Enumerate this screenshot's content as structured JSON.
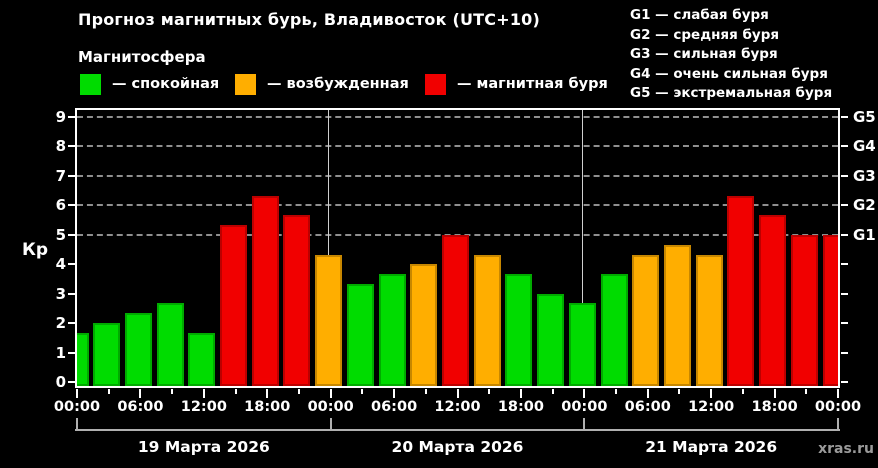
{
  "header": {
    "title": "Прогноз магнитных бурь, Владивосток (UTC+10)",
    "subtitle": "Магнитосфера"
  },
  "legend": {
    "items": [
      {
        "label": "— спокойная",
        "level": "quiet",
        "color": "#00dc00"
      },
      {
        "label": "— возбужденная",
        "level": "excited",
        "color": "#ffae00"
      },
      {
        "label": "— магнитная буря",
        "level": "storm",
        "color": "#f10000"
      }
    ]
  },
  "storm_scale_legend": {
    "items": [
      "G1 — слабая буря",
      "G2 — средняя буря",
      "G3 — сильная буря",
      "G4 — очень сильная буря",
      "G5 — экстремальная буря"
    ]
  },
  "chart_data": {
    "type": "bar",
    "title": "Прогноз магнитных бурь, Владивосток (UTC+10)",
    "ylabel": "Кр",
    "ylim": [
      0,
      9
    ],
    "x_hours_span": 72,
    "grid_on_values": [
      5,
      6,
      7,
      8,
      9
    ],
    "y_ticks": [
      0,
      1,
      2,
      3,
      4,
      5,
      6,
      7,
      8,
      9
    ],
    "right_axis_labels": [
      {
        "value": 5,
        "label": "G1"
      },
      {
        "value": 6,
        "label": "G2"
      },
      {
        "value": 7,
        "label": "G3"
      },
      {
        "value": 8,
        "label": "G4"
      },
      {
        "value": 9,
        "label": "G5"
      }
    ],
    "time_labels": [
      {
        "hour": 0,
        "label": "00:00"
      },
      {
        "hour": 6,
        "label": "06:00"
      },
      {
        "hour": 12,
        "label": "12:00"
      },
      {
        "hour": 18,
        "label": "18:00"
      },
      {
        "hour": 24,
        "label": "00:00"
      },
      {
        "hour": 30,
        "label": "06:00"
      },
      {
        "hour": 36,
        "label": "12:00"
      },
      {
        "hour": 42,
        "label": "18:00"
      },
      {
        "hour": 48,
        "label": "00:00"
      },
      {
        "hour": 54,
        "label": "06:00"
      },
      {
        "hour": 60,
        "label": "12:00"
      },
      {
        "hour": 66,
        "label": "18:00"
      },
      {
        "hour": 72,
        "label": "00:00"
      }
    ],
    "minor_tick_step_hours": 3,
    "major_tick_step_hours": 6,
    "day_separators_hours": [
      24,
      48
    ],
    "days": [
      {
        "date": "19 Марта 2026",
        "start_hour": 0
      },
      {
        "date": "20 Марта 2026",
        "start_hour": 24
      },
      {
        "date": "21 Марта 2026",
        "start_hour": 48
      }
    ],
    "level_colors": {
      "quiet": "#00dc00",
      "excited": "#ffae00",
      "storm": "#f10000"
    },
    "bars": [
      {
        "hour": 0,
        "kp": 1.67,
        "level": "quiet"
      },
      {
        "hour": 3,
        "kp": 2.0,
        "level": "quiet"
      },
      {
        "hour": 6,
        "kp": 2.33,
        "level": "quiet"
      },
      {
        "hour": 9,
        "kp": 2.67,
        "level": "quiet"
      },
      {
        "hour": 12,
        "kp": 1.67,
        "level": "quiet"
      },
      {
        "hour": 15,
        "kp": 5.33,
        "level": "storm"
      },
      {
        "hour": 18,
        "kp": 6.33,
        "level": "storm"
      },
      {
        "hour": 21,
        "kp": 5.67,
        "level": "storm"
      },
      {
        "hour": 24,
        "kp": 4.33,
        "level": "excited"
      },
      {
        "hour": 27,
        "kp": 3.33,
        "level": "quiet"
      },
      {
        "hour": 30,
        "kp": 3.67,
        "level": "quiet"
      },
      {
        "hour": 33,
        "kp": 4.0,
        "level": "excited"
      },
      {
        "hour": 36,
        "kp": 5.0,
        "level": "storm"
      },
      {
        "hour": 39,
        "kp": 4.33,
        "level": "excited"
      },
      {
        "hour": 42,
        "kp": 3.67,
        "level": "quiet"
      },
      {
        "hour": 45,
        "kp": 3.0,
        "level": "quiet"
      },
      {
        "hour": 48,
        "kp": 2.67,
        "level": "quiet"
      },
      {
        "hour": 51,
        "kp": 3.67,
        "level": "quiet"
      },
      {
        "hour": 54,
        "kp": 4.33,
        "level": "excited"
      },
      {
        "hour": 57,
        "kp": 4.67,
        "level": "excited"
      },
      {
        "hour": 60,
        "kp": 4.33,
        "level": "excited"
      },
      {
        "hour": 63,
        "kp": 6.33,
        "level": "storm"
      },
      {
        "hour": 66,
        "kp": 5.67,
        "level": "storm"
      },
      {
        "hour": 69,
        "kp": 5.0,
        "level": "storm"
      },
      {
        "hour": 72,
        "kp": 5.0,
        "level": "storm"
      }
    ]
  },
  "watermark": "xras.ru"
}
